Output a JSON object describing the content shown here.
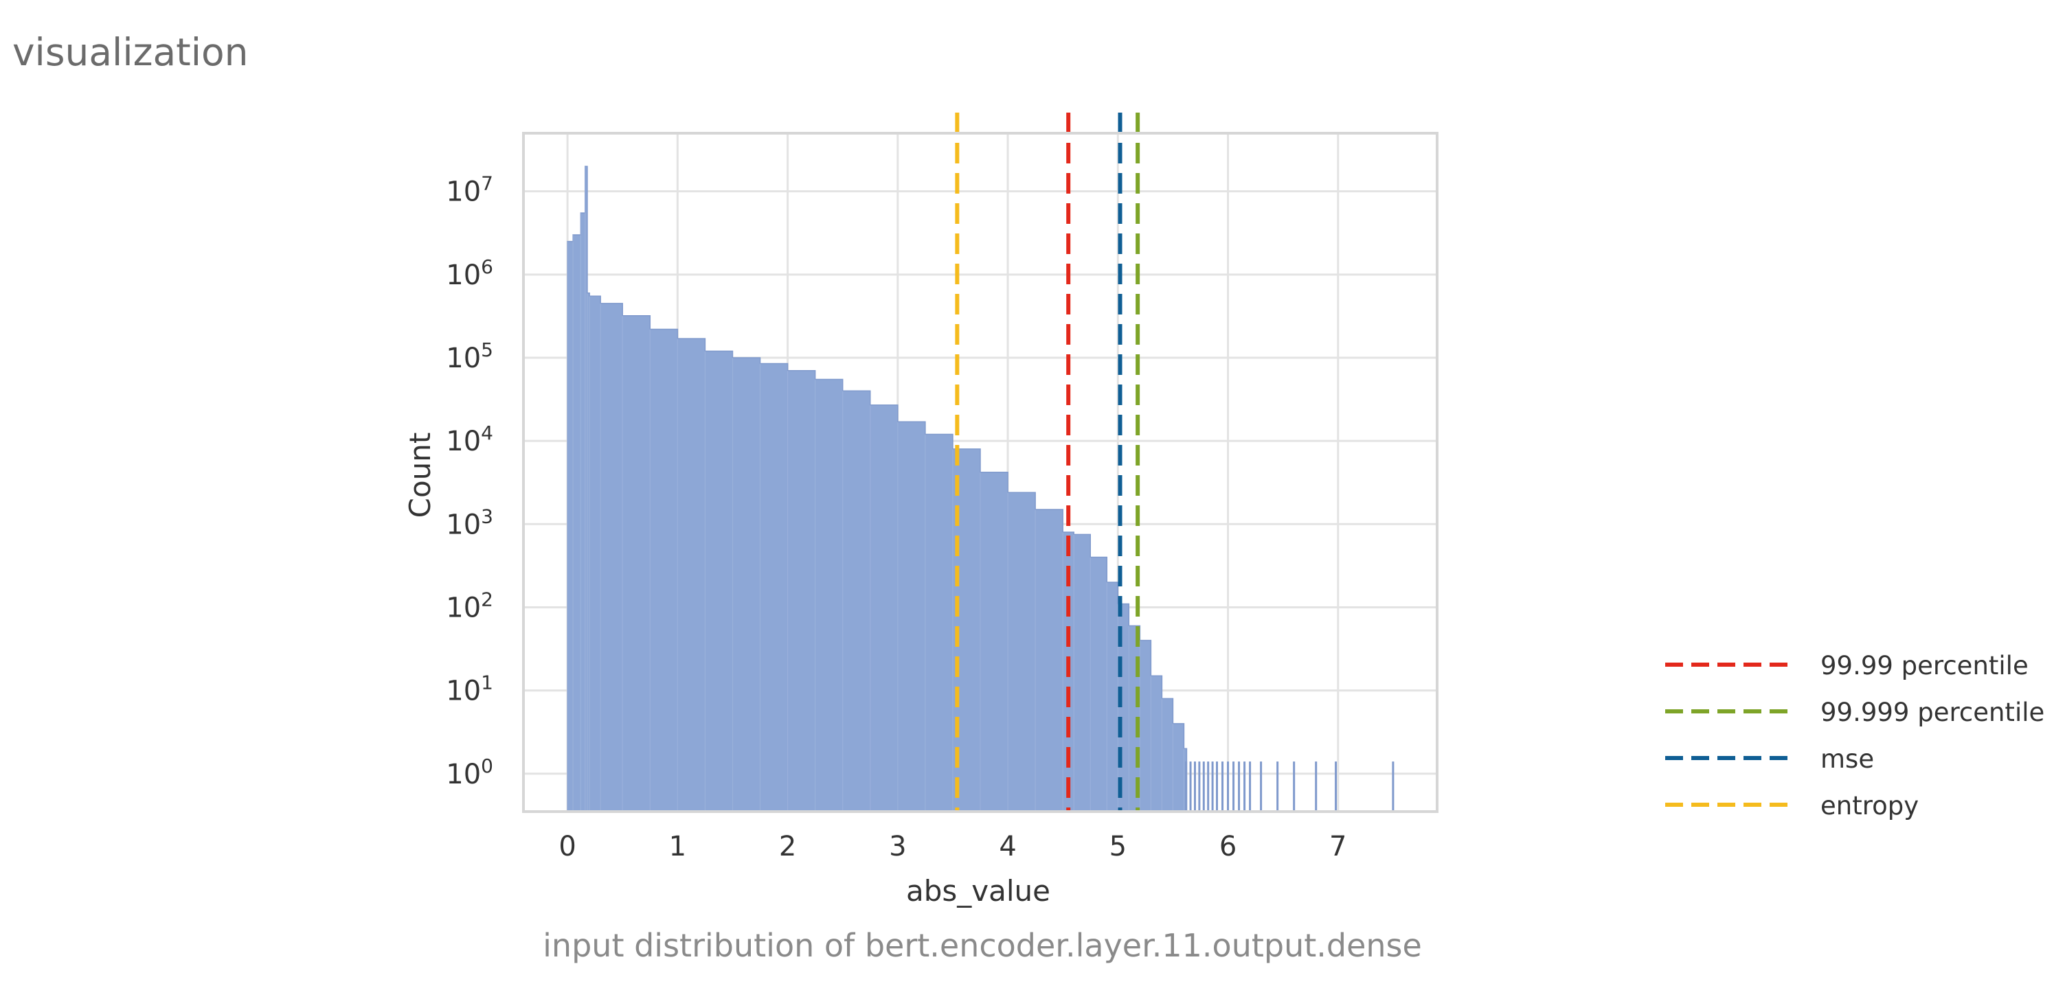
{
  "page": {
    "heading": "visualization",
    "caption": "input distribution of bert.encoder.layer.11.output.dense"
  },
  "chart_data": {
    "type": "area",
    "subtype": "histogram",
    "xlabel": "abs_value",
    "ylabel": "Count",
    "xlim": [
      -0.4,
      7.9
    ],
    "ylim": [
      0.35,
      50000000
    ],
    "yscale": "log",
    "xticks": [
      0,
      1,
      2,
      3,
      4,
      5,
      6,
      7
    ],
    "yticks": [
      {
        "value": 1,
        "base": "10",
        "exp": "0"
      },
      {
        "value": 10,
        "base": "10",
        "exp": "1"
      },
      {
        "value": 100,
        "base": "10",
        "exp": "2"
      },
      {
        "value": 1000,
        "base": "10",
        "exp": "3"
      },
      {
        "value": 10000,
        "base": "10",
        "exp": "4"
      },
      {
        "value": 100000,
        "base": "10",
        "exp": "5"
      },
      {
        "value": 1000000,
        "base": "10",
        "exp": "6"
      },
      {
        "value": 10000000,
        "base": "10",
        "exp": "7"
      }
    ],
    "grid": true,
    "histogram_color": "#8da7d6",
    "histogram_edge": "#7f99cc",
    "histogram": {
      "x": [
        0.0,
        0.05,
        0.12,
        0.16,
        0.18,
        0.2,
        0.3,
        0.5,
        0.75,
        1.0,
        1.25,
        1.5,
        1.75,
        2.0,
        2.25,
        2.5,
        2.75,
        3.0,
        3.25,
        3.5,
        3.75,
        4.0,
        4.25,
        4.5,
        4.6,
        4.75,
        4.9,
        5.0,
        5.1,
        5.2,
        5.3,
        5.4,
        5.5,
        5.6
      ],
      "y": [
        2500000,
        3000000,
        5500000,
        20000000,
        600000,
        550000,
        450000,
        320000,
        220000,
        170000,
        120000,
        100000,
        85000,
        70000,
        55000,
        40000,
        27000,
        17000,
        12000,
        8000,
        4200,
        2400,
        1500,
        800,
        750,
        400,
        200,
        110,
        60,
        40,
        15,
        8,
        4,
        2
      ]
    },
    "sparse_bins": [
      5.62,
      5.66,
      5.7,
      5.74,
      5.78,
      5.82,
      5.86,
      5.9,
      5.95,
      6.0,
      6.05,
      6.1,
      6.15,
      6.2,
      6.3,
      6.45,
      6.6,
      6.8,
      6.98,
      7.5
    ],
    "vlines": [
      {
        "name": "99.99 percentile",
        "x": 4.55,
        "color": "#e3281b"
      },
      {
        "name": "99.999 percentile",
        "x": 5.18,
        "color": "#7ea428"
      },
      {
        "name": "mse",
        "x": 5.02,
        "color": "#0f5e94"
      },
      {
        "name": "entropy",
        "x": 3.54,
        "color": "#f5bb1d"
      }
    ],
    "legend": "right"
  }
}
